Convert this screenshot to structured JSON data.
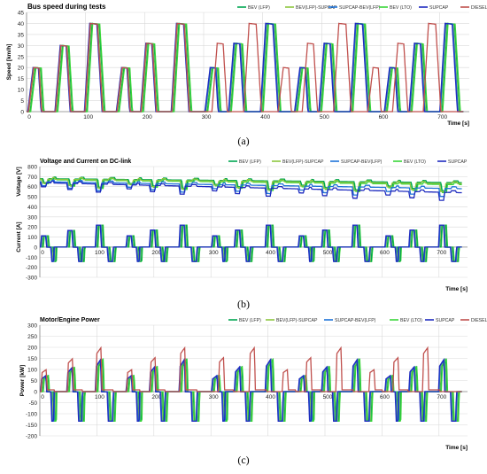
{
  "figure": {
    "captions": [
      "(a)",
      "(b)",
      "(c)"
    ]
  },
  "chart_data": [
    {
      "type": "line",
      "title": "Bus speed during tests",
      "ylabel": "Speed [km/h]",
      "xlabel": "Time [s]",
      "xlim": [
        0,
        750
      ],
      "ylim": [
        0,
        45
      ],
      "xticks": [
        0,
        100,
        200,
        300,
        400,
        500,
        600,
        700
      ],
      "yticks": [
        0,
        5,
        10,
        15,
        20,
        25,
        30,
        35,
        40,
        45
      ],
      "grid": true,
      "legend_position": "top-right",
      "series": [
        {
          "name": "BEV (LFP)",
          "color": "#00a651",
          "shift": 4
        },
        {
          "name": "BEV(LFP)-SUPCAP",
          "color": "#8dc63f",
          "shift": 2
        },
        {
          "name": "SUPCAP-BEV(LFP)",
          "color": "#1e73d8",
          "shift": 1
        },
        {
          "name": "BEV (LTO)",
          "color": "#39d639",
          "shift": 5
        },
        {
          "name": "SUPCAP",
          "color": "#1f2bbf",
          "shift": 0
        },
        {
          "name": "DIESEL",
          "color": "#c0504d",
          "shift": -28
        }
      ],
      "cycle_events": [
        {
          "t": 2,
          "peak": 20
        },
        {
          "t": 48,
          "peak": 30
        },
        {
          "t": 98,
          "peak": 40
        },
        {
          "t": 152,
          "peak": 20
        },
        {
          "t": 193,
          "peak": 31
        },
        {
          "t": 245,
          "peak": 40
        },
        {
          "t": 302,
          "peak": 20
        },
        {
          "t": 342,
          "peak": 31
        },
        {
          "t": 396,
          "peak": 40
        },
        {
          "t": 454,
          "peak": 20
        },
        {
          "t": 495,
          "peak": 31
        },
        {
          "t": 548,
          "peak": 40
        },
        {
          "t": 606,
          "peak": 20
        },
        {
          "t": 648,
          "peak": 31
        },
        {
          "t": 700,
          "peak": 40
        }
      ],
      "diesel_shift_start": 300
    },
    {
      "type": "line",
      "title": "Voltage and Current on DC-link",
      "ylabel_top": "Voltage [V]",
      "ylabel_bottom": "Current [A]",
      "xlabel": "Time [s]",
      "xlim": [
        0,
        750
      ],
      "ylim": [
        -300,
        800
      ],
      "xticks": [
        0,
        100,
        200,
        300,
        400,
        500,
        600,
        700
      ],
      "yticks": [
        -300,
        -200,
        -100,
        0,
        100,
        200,
        300,
        400,
        500,
        600,
        700,
        800
      ],
      "grid": true,
      "legend_position": "top-right",
      "series": [
        {
          "name": "BEV (LFP)",
          "color": "#00a651",
          "shift": 4,
          "v_start": 680,
          "v_end": 640
        },
        {
          "name": "BEV(LFP)-SUPCAP",
          "color": "#8dc63f",
          "shift": 2,
          "v_start": 675,
          "v_end": 630
        },
        {
          "name": "SUPCAP-BEV(LFP)",
          "color": "#1e73d8",
          "shift": 1,
          "v_start": 650,
          "v_end": 580
        },
        {
          "name": "BEV (LTO)",
          "color": "#39d639",
          "shift": 5,
          "v_start": 670,
          "v_end": 620
        },
        {
          "name": "SUPCAP",
          "color": "#1f2bbf",
          "shift": 0,
          "v_start": 640,
          "v_end": 540
        }
      ]
    },
    {
      "type": "line",
      "title": "Motor/Engine Power",
      "ylabel": "Power [kW]",
      "xlabel": "Time [s]",
      "xlim": [
        0,
        750
      ],
      "ylim": [
        -200,
        300
      ],
      "xticks": [
        0,
        100,
        200,
        300,
        400,
        500,
        600,
        700
      ],
      "yticks": [
        -200,
        -150,
        -100,
        -50,
        0,
        50,
        100,
        150,
        200,
        250,
        300
      ],
      "grid": true,
      "legend_position": "top-right",
      "series": [
        {
          "name": "BEV (LFP)",
          "color": "#00a651",
          "shift": 4
        },
        {
          "name": "BEV(LFP)-SUPCAP",
          "color": "#8dc63f",
          "shift": 2
        },
        {
          "name": "SUPCAP-BEV(LFP)",
          "color": "#1e73d8",
          "shift": 1
        },
        {
          "name": "BEV (LTO)",
          "color": "#39d639",
          "shift": 5
        },
        {
          "name": "SUPCAP",
          "color": "#1f2bbf",
          "shift": 0
        },
        {
          "name": "DIESEL",
          "color": "#c0504d",
          "shift": -28
        }
      ]
    }
  ]
}
